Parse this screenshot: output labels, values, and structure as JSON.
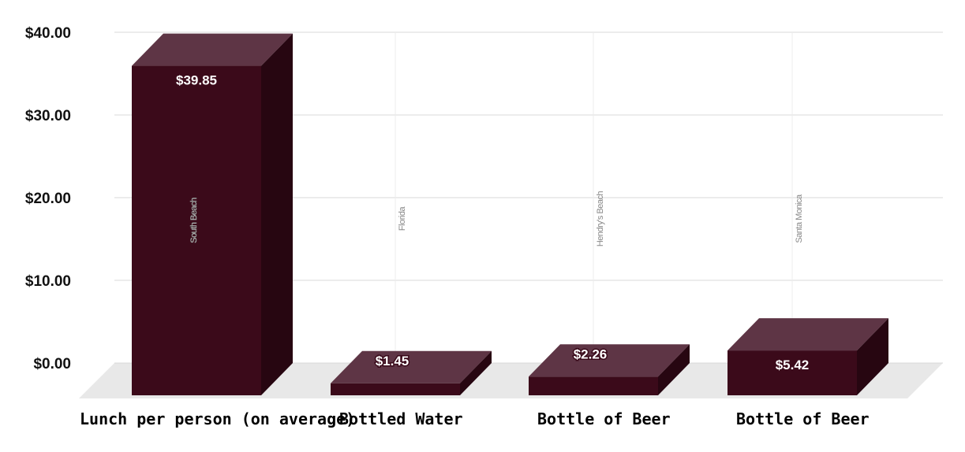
{
  "chart_data": {
    "type": "bar",
    "categories": [
      "Lunch per person (on average)",
      "Bottled Water",
      "Bottle of Beer",
      "Bottle of Beer"
    ],
    "locations": [
      "South Beach",
      "Florida",
      "Hendry's Beach",
      "Santa Monica"
    ],
    "values": [
      39.85,
      1.45,
      2.26,
      5.42
    ],
    "value_labels": [
      "$39.85",
      "$1.45",
      "$2.26",
      "$5.42"
    ],
    "yticks": [
      0,
      10,
      20,
      30,
      40
    ],
    "ytick_labels": [
      "$0.00",
      "$10.00",
      "$20.00",
      "$30.00",
      "$40.00"
    ],
    "ylim": [
      0,
      40
    ],
    "title": "",
    "xlabel": "",
    "ylabel": "",
    "grid": true,
    "three_d": true,
    "colors": {
      "bar_front": "#3b0a1a",
      "bar_top": "#5e3545",
      "bar_side": "#270611",
      "floor": "#e8e8e8"
    }
  }
}
